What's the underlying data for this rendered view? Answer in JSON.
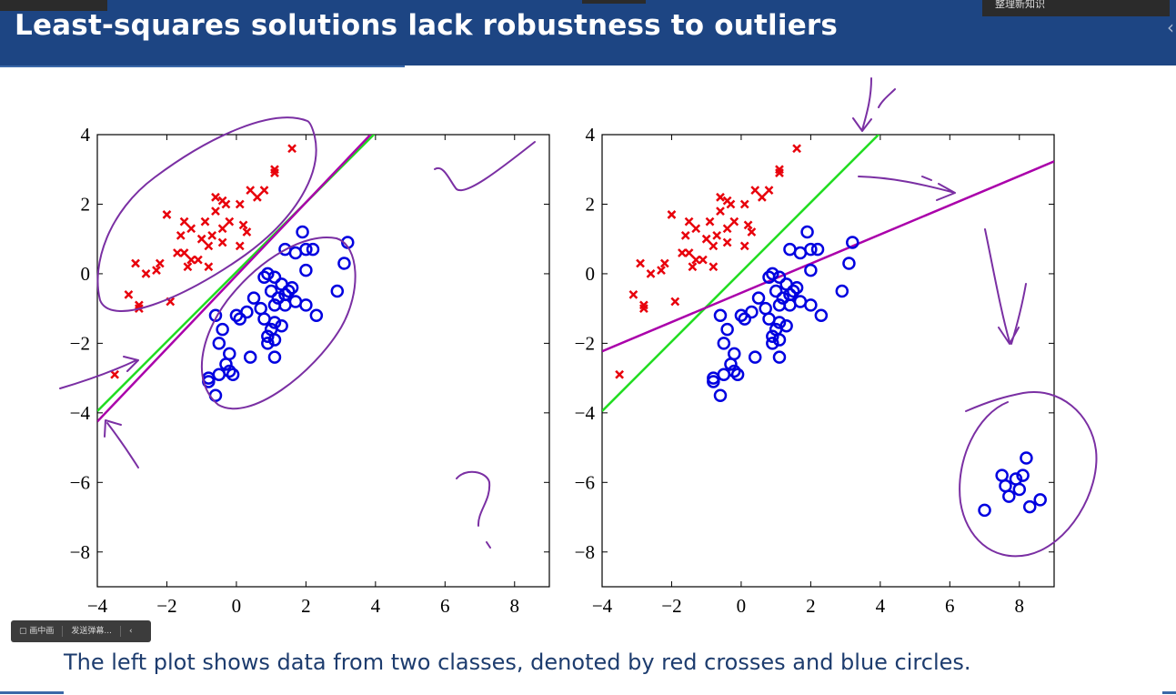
{
  "slide": {
    "title": "Least-squares solutions lack robustness to outliers",
    "caption": "The left plot shows data from two classes, denoted by red crosses and blue circles.",
    "top_right_tab": "整理新知识"
  },
  "player": {
    "picture_in_picture": "▢ 画中画",
    "send_danmaku": "发送弹幕...",
    "collapse": "‹"
  },
  "chart_data": [
    {
      "type": "scatter",
      "title": "",
      "xlabel": "",
      "ylabel": "",
      "xlim": [
        -4,
        9
      ],
      "ylim": [
        -9,
        4
      ],
      "xticks": [
        -4,
        -2,
        0,
        2,
        4,
        6,
        8
      ],
      "yticks": [
        -8,
        -6,
        -4,
        -2,
        0,
        2,
        4
      ],
      "grid": false,
      "series": [
        {
          "marker": "cross",
          "color": "#e8000b",
          "points": [
            [
              1.6,
              3.6
            ],
            [
              1.1,
              3.0
            ],
            [
              1.1,
              2.9
            ],
            [
              0.8,
              2.4
            ],
            [
              0.4,
              2.4
            ],
            [
              0.6,
              2.2
            ],
            [
              -0.4,
              2.1
            ],
            [
              -0.6,
              2.2
            ],
            [
              -0.3,
              2.0
            ],
            [
              0.1,
              2.0
            ],
            [
              -0.6,
              1.8
            ],
            [
              -0.9,
              1.5
            ],
            [
              -2.0,
              1.7
            ],
            [
              -1.5,
              1.5
            ],
            [
              -0.2,
              1.5
            ],
            [
              0.2,
              1.4
            ],
            [
              -0.4,
              1.3
            ],
            [
              -1.3,
              1.3
            ],
            [
              -0.7,
              1.1
            ],
            [
              0.3,
              1.2
            ],
            [
              -1.6,
              1.1
            ],
            [
              -1.0,
              1.0
            ],
            [
              -0.4,
              0.9
            ],
            [
              -0.8,
              0.8
            ],
            [
              0.1,
              0.8
            ],
            [
              -1.7,
              0.6
            ],
            [
              -1.5,
              0.6
            ],
            [
              -1.3,
              0.4
            ],
            [
              -1.1,
              0.4
            ],
            [
              -2.2,
              0.3
            ],
            [
              -2.9,
              0.3
            ],
            [
              -1.4,
              0.2
            ],
            [
              -0.8,
              0.2
            ],
            [
              -2.3,
              0.1
            ],
            [
              -2.6,
              0.0
            ],
            [
              -3.1,
              -0.6
            ],
            [
              -2.8,
              -0.9
            ],
            [
              -2.8,
              -1.0
            ],
            [
              -1.9,
              -0.8
            ],
            [
              -3.5,
              -2.9
            ]
          ]
        },
        {
          "marker": "circle",
          "color": "#0000e0",
          "points": [
            [
              1.9,
              1.2
            ],
            [
              3.2,
              0.9
            ],
            [
              1.4,
              0.7
            ],
            [
              2.0,
              0.7
            ],
            [
              2.2,
              0.7
            ],
            [
              1.7,
              0.6
            ],
            [
              3.1,
              0.3
            ],
            [
              2.0,
              0.1
            ],
            [
              0.8,
              -0.1
            ],
            [
              0.9,
              0.0
            ],
            [
              1.1,
              -0.1
            ],
            [
              1.3,
              -0.3
            ],
            [
              1.6,
              -0.4
            ],
            [
              1.0,
              -0.5
            ],
            [
              1.4,
              -0.6
            ],
            [
              1.5,
              -0.5
            ],
            [
              1.2,
              -0.7
            ],
            [
              1.7,
              -0.8
            ],
            [
              2.9,
              -0.5
            ],
            [
              0.5,
              -0.7
            ],
            [
              1.1,
              -0.9
            ],
            [
              1.4,
              -0.9
            ],
            [
              2.0,
              -0.9
            ],
            [
              0.7,
              -1.0
            ],
            [
              0.3,
              -1.1
            ],
            [
              -0.6,
              -1.2
            ],
            [
              0.0,
              -1.2
            ],
            [
              0.1,
              -1.3
            ],
            [
              0.8,
              -1.3
            ],
            [
              1.1,
              -1.4
            ],
            [
              1.3,
              -1.5
            ],
            [
              2.3,
              -1.2
            ],
            [
              -0.4,
              -1.6
            ],
            [
              1.0,
              -1.6
            ],
            [
              0.9,
              -1.8
            ],
            [
              1.1,
              -1.9
            ],
            [
              0.9,
              -2.0
            ],
            [
              -0.5,
              -2.0
            ],
            [
              -0.2,
              -2.3
            ],
            [
              0.4,
              -2.4
            ],
            [
              1.1,
              -2.4
            ],
            [
              -0.3,
              -2.6
            ],
            [
              -0.2,
              -2.8
            ],
            [
              -0.5,
              -2.9
            ],
            [
              -0.8,
              -3.0
            ],
            [
              -0.8,
              -3.1
            ],
            [
              -0.1,
              -2.9
            ],
            [
              -0.6,
              -3.5
            ]
          ]
        }
      ],
      "lines": [
        {
          "color": "#22dd22",
          "slope": 1.0,
          "intercept": 0.05
        },
        {
          "color": "#aa00aa",
          "slope": 1.05,
          "intercept": -0.05
        }
      ]
    },
    {
      "type": "scatter",
      "title": "",
      "xlabel": "",
      "ylabel": "",
      "xlim": [
        -4,
        9
      ],
      "ylim": [
        -9,
        4
      ],
      "xticks": [
        -4,
        -2,
        0,
        2,
        4,
        6,
        8
      ],
      "yticks": [
        -8,
        -6,
        -4,
        -2,
        0,
        2,
        4
      ],
      "grid": false,
      "series": [
        {
          "marker": "cross",
          "color": "#e8000b",
          "points": [
            [
              1.6,
              3.6
            ],
            [
              1.1,
              3.0
            ],
            [
              1.1,
              2.9
            ],
            [
              0.8,
              2.4
            ],
            [
              0.4,
              2.4
            ],
            [
              0.6,
              2.2
            ],
            [
              -0.4,
              2.1
            ],
            [
              -0.6,
              2.2
            ],
            [
              -0.3,
              2.0
            ],
            [
              0.1,
              2.0
            ],
            [
              -0.6,
              1.8
            ],
            [
              -0.9,
              1.5
            ],
            [
              -2.0,
              1.7
            ],
            [
              -1.5,
              1.5
            ],
            [
              -0.2,
              1.5
            ],
            [
              0.2,
              1.4
            ],
            [
              -0.4,
              1.3
            ],
            [
              -1.3,
              1.3
            ],
            [
              -0.7,
              1.1
            ],
            [
              0.3,
              1.2
            ],
            [
              -1.6,
              1.1
            ],
            [
              -1.0,
              1.0
            ],
            [
              -0.4,
              0.9
            ],
            [
              -0.8,
              0.8
            ],
            [
              0.1,
              0.8
            ],
            [
              -1.7,
              0.6
            ],
            [
              -1.5,
              0.6
            ],
            [
              -1.3,
              0.4
            ],
            [
              -1.1,
              0.4
            ],
            [
              -2.2,
              0.3
            ],
            [
              -2.9,
              0.3
            ],
            [
              -1.4,
              0.2
            ],
            [
              -0.8,
              0.2
            ],
            [
              -2.3,
              0.1
            ],
            [
              -2.6,
              0.0
            ],
            [
              -3.1,
              -0.6
            ],
            [
              -2.8,
              -0.9
            ],
            [
              -2.8,
              -1.0
            ],
            [
              -1.9,
              -0.8
            ],
            [
              -3.5,
              -2.9
            ]
          ]
        },
        {
          "marker": "circle",
          "color": "#0000e0",
          "points": [
            [
              1.9,
              1.2
            ],
            [
              3.2,
              0.9
            ],
            [
              1.4,
              0.7
            ],
            [
              2.0,
              0.7
            ],
            [
              2.2,
              0.7
            ],
            [
              1.7,
              0.6
            ],
            [
              3.1,
              0.3
            ],
            [
              2.0,
              0.1
            ],
            [
              0.8,
              -0.1
            ],
            [
              0.9,
              0.0
            ],
            [
              1.1,
              -0.1
            ],
            [
              1.3,
              -0.3
            ],
            [
              1.6,
              -0.4
            ],
            [
              1.0,
              -0.5
            ],
            [
              1.4,
              -0.6
            ],
            [
              1.5,
              -0.5
            ],
            [
              1.2,
              -0.7
            ],
            [
              1.7,
              -0.8
            ],
            [
              2.9,
              -0.5
            ],
            [
              0.5,
              -0.7
            ],
            [
              1.1,
              -0.9
            ],
            [
              1.4,
              -0.9
            ],
            [
              2.0,
              -0.9
            ],
            [
              0.7,
              -1.0
            ],
            [
              0.3,
              -1.1
            ],
            [
              -0.6,
              -1.2
            ],
            [
              0.0,
              -1.2
            ],
            [
              0.1,
              -1.3
            ],
            [
              0.8,
              -1.3
            ],
            [
              1.1,
              -1.4
            ],
            [
              1.3,
              -1.5
            ],
            [
              2.3,
              -1.2
            ],
            [
              -0.4,
              -1.6
            ],
            [
              1.0,
              -1.6
            ],
            [
              0.9,
              -1.8
            ],
            [
              1.1,
              -1.9
            ],
            [
              0.9,
              -2.0
            ],
            [
              -0.5,
              -2.0
            ],
            [
              -0.2,
              -2.3
            ],
            [
              0.4,
              -2.4
            ],
            [
              1.1,
              -2.4
            ],
            [
              -0.3,
              -2.6
            ],
            [
              -0.2,
              -2.8
            ],
            [
              -0.5,
              -2.9
            ],
            [
              -0.8,
              -3.0
            ],
            [
              -0.8,
              -3.1
            ],
            [
              -0.1,
              -2.9
            ],
            [
              -0.6,
              -3.5
            ],
            [
              8.2,
              -5.3
            ],
            [
              7.5,
              -5.8
            ],
            [
              7.9,
              -5.9
            ],
            [
              8.1,
              -5.8
            ],
            [
              7.6,
              -6.1
            ],
            [
              8.0,
              -6.2
            ],
            [
              7.7,
              -6.4
            ],
            [
              8.6,
              -6.5
            ],
            [
              8.3,
              -6.7
            ],
            [
              7.0,
              -6.8
            ]
          ]
        }
      ],
      "lines": [
        {
          "color": "#22dd22",
          "slope": 1.0,
          "intercept": 0.05
        },
        {
          "color": "#aa00aa",
          "slope": 0.42,
          "intercept": -0.55
        }
      ]
    }
  ]
}
